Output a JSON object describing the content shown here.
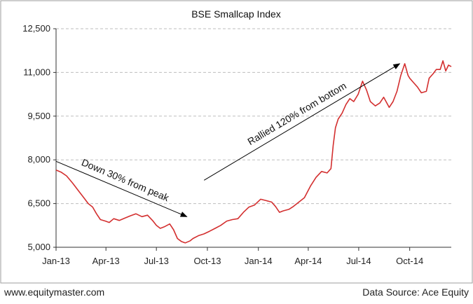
{
  "chart_data": {
    "type": "line",
    "title": "BSE Smallcap Index",
    "xlabel": "",
    "ylabel": "",
    "ylim": [
      5000,
      12500
    ],
    "yticks": [
      5000,
      6500,
      8000,
      9500,
      11000,
      12500
    ],
    "ytick_labels": [
      "5,000",
      "6,500",
      "8,000",
      "9,500",
      "11,000",
      "12,500"
    ],
    "xlim": [
      "2013-01-01",
      "2014-12-15"
    ],
    "xticks": [
      "2013-01-01",
      "2013-04-01",
      "2013-07-01",
      "2013-10-01",
      "2014-01-01",
      "2014-04-01",
      "2014-07-01",
      "2014-10-01"
    ],
    "xtick_labels": [
      "Jan-13",
      "Apr-13",
      "Jul-13",
      "Oct-13",
      "Jan-14",
      "Apr-14",
      "Jul-14",
      "Oct-14"
    ],
    "grid": "horizontal-dashed",
    "line_color": "#d32f2f",
    "series": [
      {
        "points": [
          [
            "2013-01-01",
            7650
          ],
          [
            "2013-01-10",
            7580
          ],
          [
            "2013-01-20",
            7450
          ],
          [
            "2013-01-31",
            7200
          ],
          [
            "2013-02-10",
            6950
          ],
          [
            "2013-02-20",
            6700
          ],
          [
            "2013-02-28",
            6500
          ],
          [
            "2013-03-08",
            6380
          ],
          [
            "2013-03-15",
            6150
          ],
          [
            "2013-03-22",
            5950
          ],
          [
            "2013-03-31",
            5900
          ],
          [
            "2013-04-07",
            5850
          ],
          [
            "2013-04-15",
            5980
          ],
          [
            "2013-04-25",
            5920
          ],
          [
            "2013-05-05",
            6000
          ],
          [
            "2013-05-15",
            6080
          ],
          [
            "2013-05-25",
            6150
          ],
          [
            "2013-06-05",
            6050
          ],
          [
            "2013-06-15",
            6100
          ],
          [
            "2013-06-25",
            5900
          ],
          [
            "2013-07-01",
            5750
          ],
          [
            "2013-07-08",
            5650
          ],
          [
            "2013-07-15",
            5700
          ],
          [
            "2013-07-25",
            5800
          ],
          [
            "2013-08-01",
            5600
          ],
          [
            "2013-08-08",
            5300
          ],
          [
            "2013-08-15",
            5200
          ],
          [
            "2013-08-22",
            5150
          ],
          [
            "2013-08-31",
            5220
          ],
          [
            "2013-09-05",
            5300
          ],
          [
            "2013-09-15",
            5400
          ],
          [
            "2013-09-25",
            5460
          ],
          [
            "2013-10-05",
            5550
          ],
          [
            "2013-10-15",
            5650
          ],
          [
            "2013-10-25",
            5750
          ],
          [
            "2013-11-05",
            5900
          ],
          [
            "2013-11-15",
            5950
          ],
          [
            "2013-11-25",
            5980
          ],
          [
            "2013-12-05",
            6200
          ],
          [
            "2013-12-15",
            6380
          ],
          [
            "2013-12-25",
            6450
          ],
          [
            "2014-01-05",
            6650
          ],
          [
            "2014-01-15",
            6600
          ],
          [
            "2014-01-25",
            6550
          ],
          [
            "2014-02-01",
            6400
          ],
          [
            "2014-02-08",
            6200
          ],
          [
            "2014-02-15",
            6250
          ],
          [
            "2014-02-25",
            6300
          ],
          [
            "2014-03-05",
            6400
          ],
          [
            "2014-03-15",
            6550
          ],
          [
            "2014-03-25",
            6700
          ],
          [
            "2014-04-05",
            7100
          ],
          [
            "2014-04-15",
            7400
          ],
          [
            "2014-04-25",
            7600
          ],
          [
            "2014-05-05",
            7550
          ],
          [
            "2014-05-12",
            7700
          ],
          [
            "2014-05-16",
            8500
          ],
          [
            "2014-05-20",
            9100
          ],
          [
            "2014-05-25",
            9400
          ],
          [
            "2014-06-01",
            9600
          ],
          [
            "2014-06-08",
            9900
          ],
          [
            "2014-06-15",
            10100
          ],
          [
            "2014-06-22",
            10000
          ],
          [
            "2014-06-30",
            10250
          ],
          [
            "2014-07-08",
            10700
          ],
          [
            "2014-07-15",
            10400
          ],
          [
            "2014-07-22",
            10000
          ],
          [
            "2014-07-31",
            9850
          ],
          [
            "2014-08-08",
            9950
          ],
          [
            "2014-08-15",
            10150
          ],
          [
            "2014-08-25",
            9800
          ],
          [
            "2014-09-01",
            10000
          ],
          [
            "2014-09-08",
            10350
          ],
          [
            "2014-09-15",
            10900
          ],
          [
            "2014-09-22",
            11300
          ],
          [
            "2014-09-28",
            10900
          ],
          [
            "2014-10-01",
            10800
          ],
          [
            "2014-10-08",
            10650
          ],
          [
            "2014-10-15",
            10500
          ],
          [
            "2014-10-22",
            10300
          ],
          [
            "2014-10-31",
            10350
          ],
          [
            "2014-11-05",
            10800
          ],
          [
            "2014-11-12",
            10950
          ],
          [
            "2014-11-18",
            11100
          ],
          [
            "2014-11-25",
            11100
          ],
          [
            "2014-11-30",
            11400
          ],
          [
            "2014-12-05",
            11050
          ],
          [
            "2014-12-10",
            11250
          ],
          [
            "2014-12-15",
            11200
          ]
        ]
      }
    ],
    "annotations": [
      {
        "text": "Down 30% from peak",
        "from": [
          "2013-01-01",
          7950
        ],
        "to": [
          "2013-08-25",
          6050
        ]
      },
      {
        "text": "Rallied 120% from bottom",
        "from": [
          "2013-09-25",
          7300
        ],
        "to": [
          "2014-09-13",
          11300
        ]
      }
    ]
  },
  "footer": {
    "left": "www.equitymaster.com",
    "right": "Data Source: Ace Equity"
  }
}
